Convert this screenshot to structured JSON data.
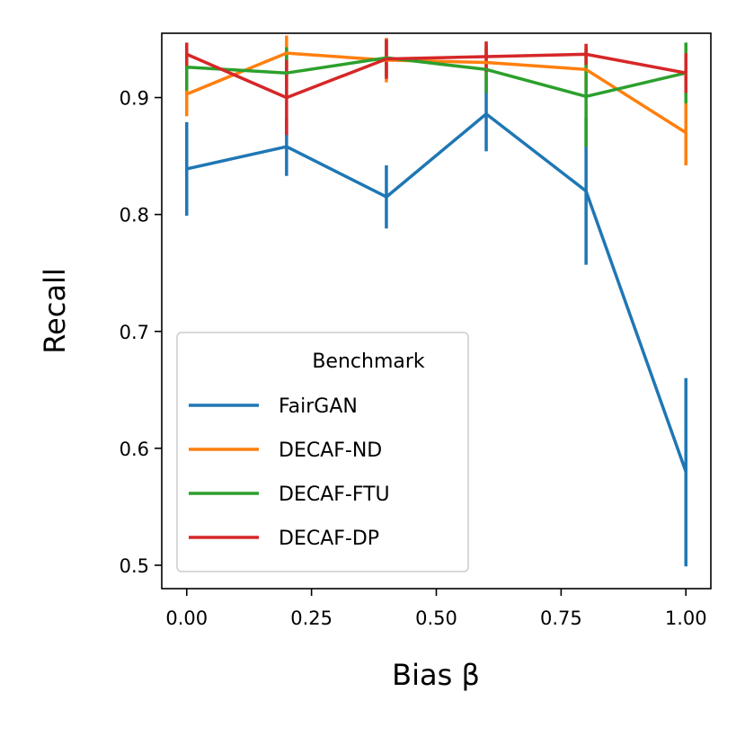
{
  "chart_data": {
    "type": "line",
    "xlabel": "Bias β",
    "ylabel": "Recall",
    "xlim": [
      -0.05,
      1.05
    ],
    "ylim": [
      0.48,
      0.955
    ],
    "xticks": [
      0.0,
      0.25,
      0.5,
      0.75,
      1.0
    ],
    "xtick_labels": [
      "0.00",
      "0.25",
      "0.50",
      "0.75",
      "1.00"
    ],
    "yticks": [
      0.5,
      0.6,
      0.7,
      0.8,
      0.9
    ],
    "ytick_labels": [
      "0.5",
      "0.6",
      "0.7",
      "0.8",
      "0.9"
    ],
    "grid": false,
    "legend": {
      "title": "Benchmark",
      "placement": "lower-left"
    },
    "x": [
      0.0,
      0.2,
      0.4,
      0.6,
      0.8,
      1.0
    ],
    "series": [
      {
        "name": "FairGAN",
        "color": "#1f77b4",
        "values": [
          0.839,
          0.858,
          0.815,
          0.886,
          0.82,
          0.58
        ],
        "err_low": [
          0.799,
          0.833,
          0.788,
          0.854,
          0.757,
          0.499
        ],
        "err_high": [
          0.879,
          0.883,
          0.842,
          0.918,
          0.883,
          0.66
        ]
      },
      {
        "name": "DECAF-ND",
        "color": "#ff7f0e",
        "values": [
          0.903,
          0.938,
          0.932,
          0.93,
          0.924,
          0.87
        ],
        "err_low": [
          0.884,
          0.923,
          0.913,
          0.914,
          0.906,
          0.842
        ],
        "err_high": [
          0.922,
          0.953,
          0.951,
          0.946,
          0.942,
          0.898
        ]
      },
      {
        "name": "DECAF-FTU",
        "color": "#2ca02c",
        "values": [
          0.926,
          0.921,
          0.934,
          0.924,
          0.901,
          0.921
        ],
        "err_low": [
          0.906,
          0.899,
          0.918,
          0.904,
          0.858,
          0.895
        ],
        "err_high": [
          0.946,
          0.943,
          0.95,
          0.944,
          0.944,
          0.947
        ]
      },
      {
        "name": "DECAF-DP",
        "color": "#d62728",
        "values": [
          0.937,
          0.9,
          0.933,
          0.935,
          0.937,
          0.921
        ],
        "err_low": [
          0.927,
          0.868,
          0.916,
          0.922,
          0.928,
          0.904
        ],
        "err_high": [
          0.947,
          0.932,
          0.95,
          0.948,
          0.946,
          0.938
        ]
      }
    ]
  }
}
